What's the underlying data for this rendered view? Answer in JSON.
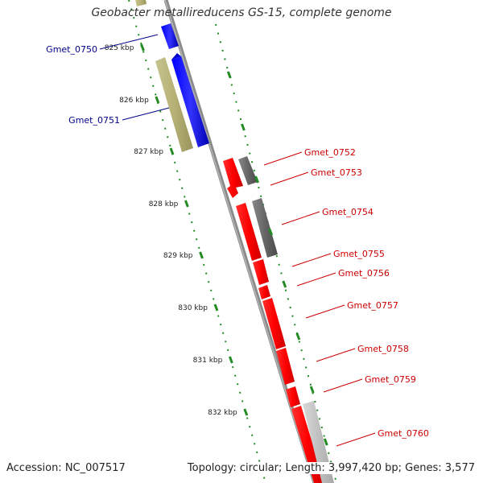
{
  "title": "Geobacter metallireducens GS-15, complete genome",
  "footer": {
    "accession": "Accession: NC_007517",
    "summary": "Topology: circular; Length: 3,997,420 bp; Genes: 3,577"
  },
  "colors": {
    "backbone": "#8a8a8a",
    "tick": "#228b22",
    "label_left": "#00008b",
    "label_right": "#cc0000"
  },
  "ruler": {
    "unit": "kbp",
    "ticks": [
      825,
      826,
      827,
      828,
      829,
      830,
      831,
      832
    ]
  },
  "genes_left": [
    {
      "name": "Gmet_0750",
      "color": "blue"
    },
    {
      "name": "Gmet_0751",
      "color": "blue"
    }
  ],
  "genes_right": [
    {
      "name": "Gmet_0752",
      "color": "red"
    },
    {
      "name": "Gmet_0753",
      "color": "red"
    },
    {
      "name": "Gmet_0754",
      "color": "red"
    },
    {
      "name": "Gmet_0755",
      "color": "red"
    },
    {
      "name": "Gmet_0756",
      "color": "red"
    },
    {
      "name": "Gmet_0757",
      "color": "red"
    },
    {
      "name": "Gmet_0758",
      "color": "red"
    },
    {
      "name": "Gmet_0759",
      "color": "red"
    },
    {
      "name": "Gmet_0760",
      "color": "red"
    }
  ]
}
